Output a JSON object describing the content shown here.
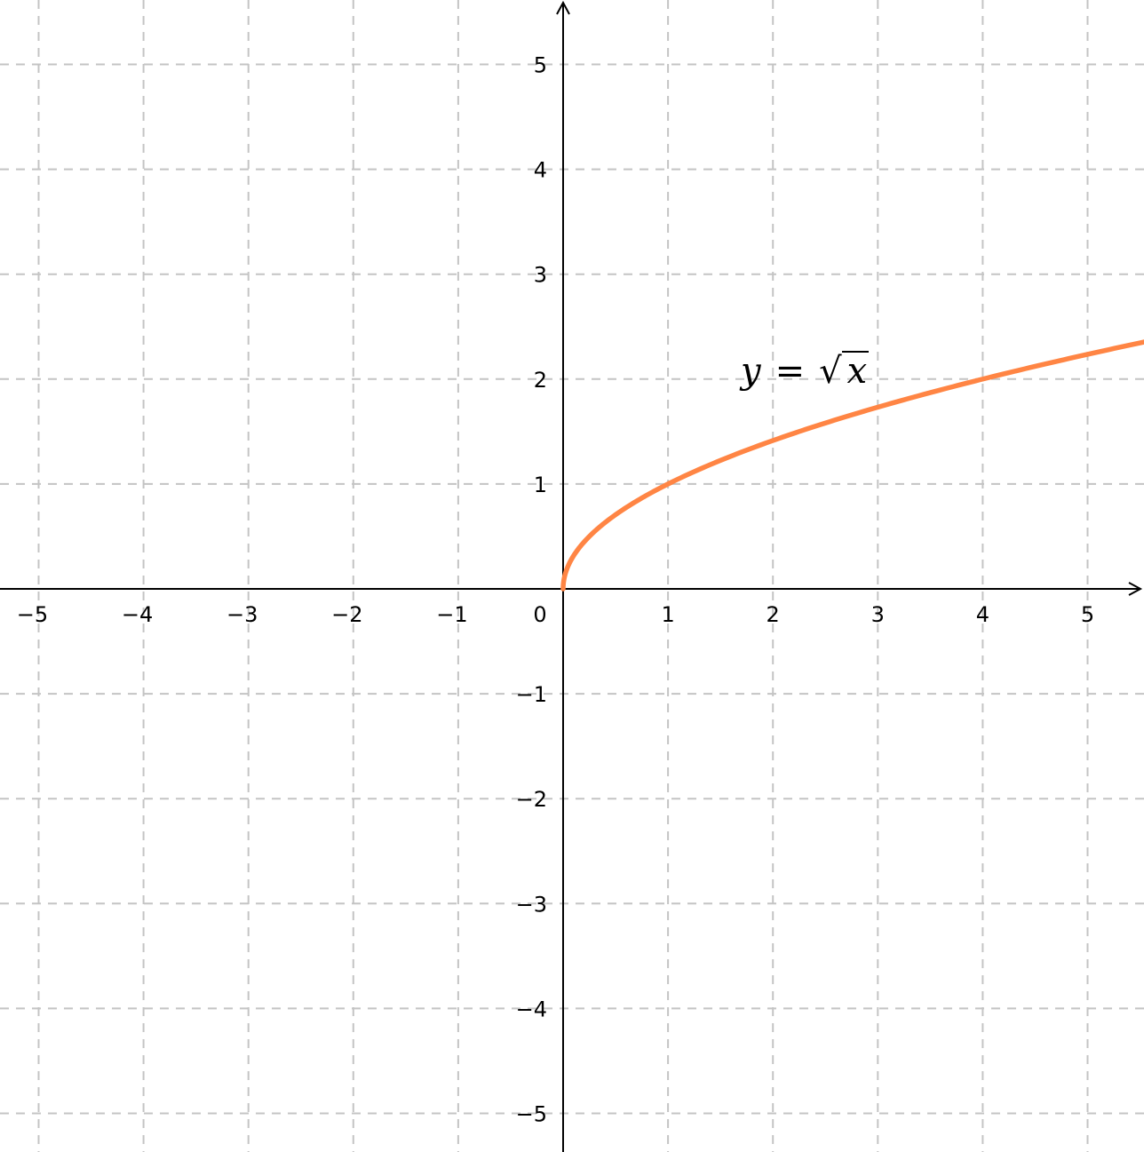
{
  "chart_data": {
    "type": "line",
    "title": "",
    "xlabel": "",
    "ylabel": "",
    "xlim": [
      -5.4,
      5.55
    ],
    "ylim": [
      -5.4,
      5.6
    ],
    "grid": true,
    "x_ticks": [
      "−5",
      "−4",
      "−3",
      "−2",
      "−1",
      "1",
      "2",
      "3",
      "4",
      "5"
    ],
    "y_ticks": [
      "5",
      "4",
      "3",
      "2",
      "1",
      "−1",
      "−2",
      "−3",
      "−4",
      "−5"
    ],
    "origin_label": "0",
    "series": [
      {
        "name": "",
        "function": "sqrt",
        "color": "#ff8544",
        "x": [
          0,
          0.01,
          0.05,
          0.1,
          0.25,
          0.5,
          1,
          1.5,
          2,
          2.5,
          3,
          3.5,
          4,
          4.5,
          5,
          5.5
        ],
        "y": [
          0,
          0.1,
          0.22,
          0.32,
          0.5,
          0.71,
          1,
          1.22,
          1.41,
          1.58,
          1.73,
          1.87,
          2,
          2.12,
          2.24,
          2.35
        ]
      }
    ],
    "annotation": {
      "lhs": "y",
      "eq": "=",
      "sqrt": "√",
      "rhs": "x"
    }
  }
}
